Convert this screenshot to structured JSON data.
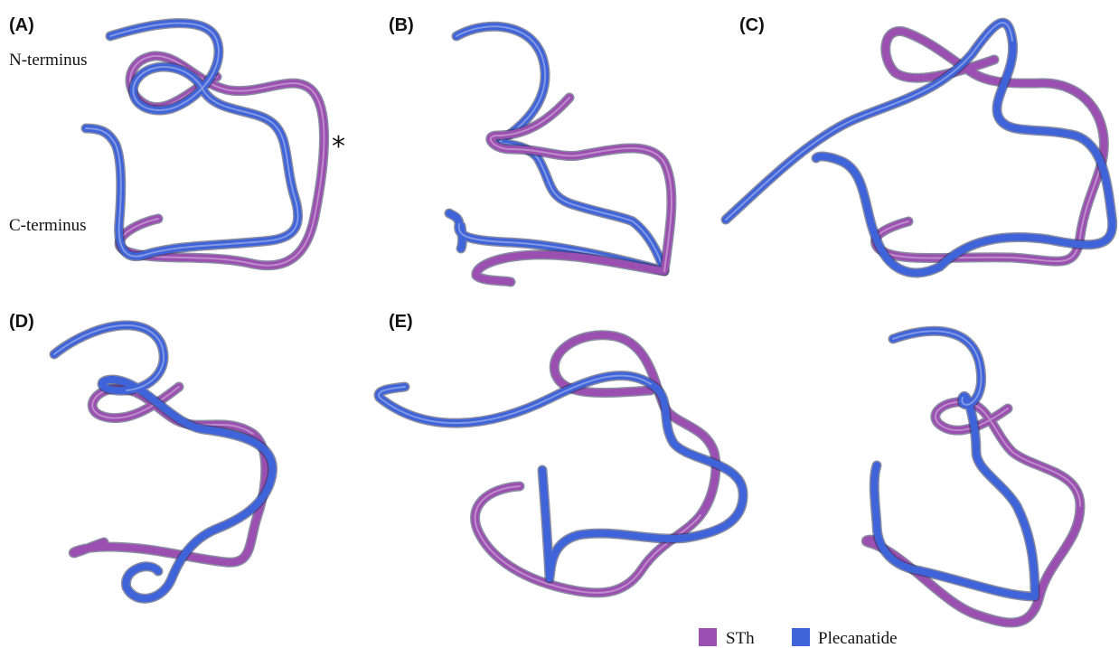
{
  "panels": [
    {
      "label": "(A)"
    },
    {
      "label": "(B)"
    },
    {
      "label": "(C)"
    },
    {
      "label": "(D)"
    },
    {
      "label": "(E)"
    }
  ],
  "annotations": {
    "n_terminus": "N-terminus",
    "c_terminus": "C-terminus",
    "asterisk": "*"
  },
  "legend": [
    {
      "name": "STh",
      "color": "#9b4fb0"
    },
    {
      "name": "Plecanatide",
      "color": "#3f63d8"
    }
  ],
  "colors": {
    "sth": "#9b4fb0",
    "plecanatide": "#3f63d8"
  }
}
